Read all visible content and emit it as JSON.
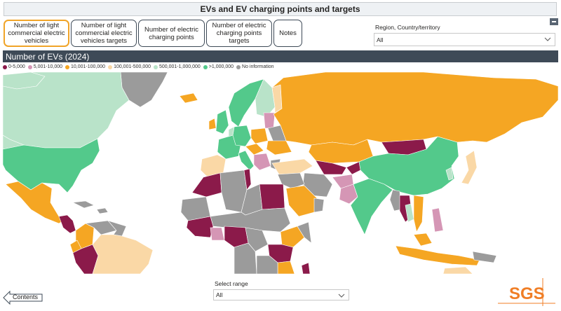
{
  "header": {
    "title": "EVs and EV charging points and targets"
  },
  "tabs": [
    {
      "label": "Number of light commercial electric vehicles",
      "active": true
    },
    {
      "label": "Number of light commercial electric vehicles  targets",
      "active": false
    },
    {
      "label": "Number of electric charging points",
      "active": false
    },
    {
      "label": "Number of electric charging points  targets",
      "active": false
    },
    {
      "label": "Notes",
      "active": false
    }
  ],
  "filter": {
    "label": "Region, Country/territory",
    "value": "All"
  },
  "section": {
    "title": "Number of EVs (2024)"
  },
  "legend": [
    {
      "label": "0-5,000",
      "color": "#8b1a4a"
    },
    {
      "label": "5,001-10,000",
      "color": "#d596b5"
    },
    {
      "label": "10,001-100,000",
      "color": "#f5a623"
    },
    {
      "label": "100,001-500,000",
      "color": "#fad8a6"
    },
    {
      "label": "500,001-1,000,000",
      "color": "#b9e3c9"
    },
    {
      "label": ">1,000,000",
      "color": "#53c98b"
    },
    {
      "label": "No information",
      "color": "#9b9b9b"
    }
  ],
  "range": {
    "label": "Select range",
    "value": "All"
  },
  "nav": {
    "back_label": "Contents"
  },
  "logo": {
    "text": "SGS",
    "color": "#f07e26"
  }
}
